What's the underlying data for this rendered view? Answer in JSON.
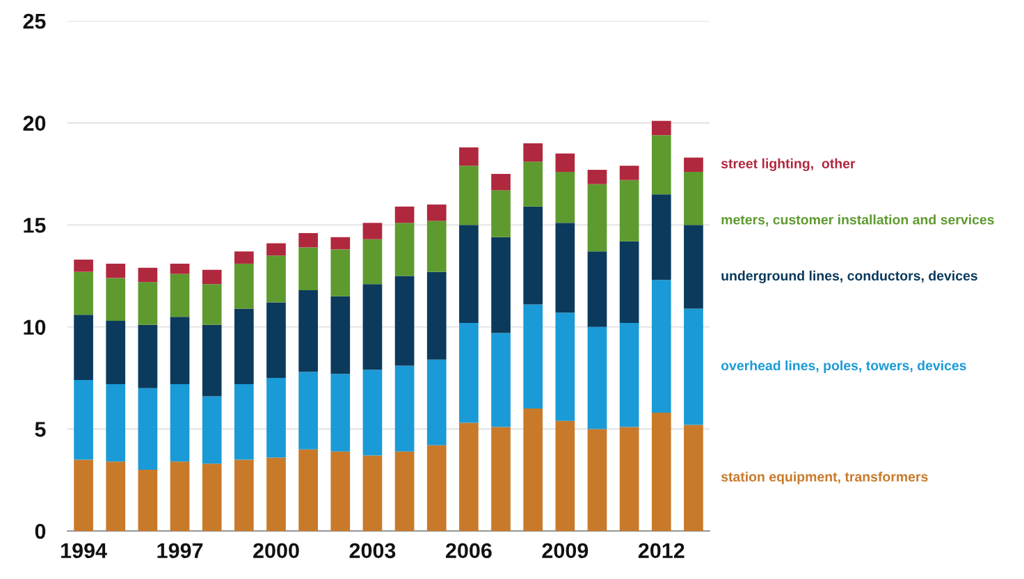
{
  "chart_data": {
    "type": "bar",
    "stacked": true,
    "categories": [
      "1994",
      null,
      null,
      "1997",
      null,
      null,
      "2000",
      null,
      null,
      "2003",
      null,
      null,
      "2006",
      null,
      null,
      "2009",
      null,
      null,
      "2012",
      null
    ],
    "series": [
      {
        "name": "station equipment, transformers",
        "color": "#c87a2a",
        "values": [
          3.5,
          3.4,
          3.0,
          3.4,
          3.3,
          3.5,
          3.6,
          4.0,
          3.9,
          3.7,
          3.9,
          4.2,
          5.3,
          5.1,
          6.0,
          5.4,
          5.0,
          5.1,
          5.8,
          5.2
        ]
      },
      {
        "name": "overhead lines, poles, towers, devices",
        "color": "#1a9ad6",
        "values": [
          3.9,
          3.8,
          4.0,
          3.8,
          3.3,
          3.7,
          3.9,
          3.8,
          3.8,
          4.2,
          4.2,
          4.2,
          4.9,
          4.6,
          5.1,
          5.3,
          5.0,
          5.1,
          6.5,
          5.7
        ]
      },
      {
        "name": "underground lines, conductors, devices",
        "color": "#0b3a5c",
        "values": [
          3.2,
          3.1,
          3.1,
          3.3,
          3.5,
          3.7,
          3.7,
          4.0,
          3.8,
          4.2,
          4.4,
          4.3,
          4.8,
          4.7,
          4.8,
          4.4,
          3.7,
          4.0,
          4.2,
          4.1
        ]
      },
      {
        "name": "meters, customer installation and services",
        "color": "#5e9a2e",
        "values": [
          2.1,
          2.1,
          2.1,
          2.1,
          2.0,
          2.2,
          2.3,
          2.1,
          2.3,
          2.2,
          2.6,
          2.5,
          2.9,
          2.3,
          2.2,
          2.5,
          3.3,
          3.0,
          2.9,
          2.6
        ]
      },
      {
        "name": "street lighting,  other",
        "color": "#b0283e",
        "values": [
          0.6,
          0.7,
          0.7,
          0.5,
          0.7,
          0.6,
          0.6,
          0.7,
          0.6,
          0.8,
          0.8,
          0.8,
          0.9,
          0.8,
          0.9,
          0.9,
          0.7,
          0.7,
          0.7,
          0.7
        ]
      }
    ],
    "ylim": [
      0,
      25
    ],
    "yticks": [
      0,
      5,
      10,
      15,
      20,
      25
    ],
    "grid": "y"
  }
}
